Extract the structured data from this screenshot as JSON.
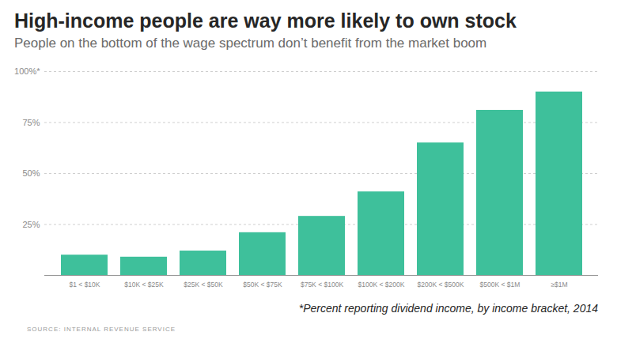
{
  "chart_data": {
    "type": "bar",
    "title": "High-income people are way more likely to own stock",
    "subtitle": "People on the bottom of the wage spectrum don’t benefit from the market boom",
    "note": "*Percent reporting dividend income, by income bracket, 2014",
    "source": "SOURCE: INTERNAL REVENUE SERVICE",
    "categories": [
      "$1 < $10K",
      "$10K < $25K",
      "$25K < $50K",
      "$50K < $75K",
      "$75K < $100K",
      "$100K < $200K",
      "$200K < $500K",
      "$500K < $1M",
      "≥$1M"
    ],
    "values": [
      10,
      9,
      12,
      21,
      29,
      41,
      65,
      81,
      90
    ],
    "color": "#3ec09b",
    "ylim": [
      0,
      100
    ],
    "yticks": [
      {
        "value": 25,
        "label": "25%"
      },
      {
        "value": 50,
        "label": "50%"
      },
      {
        "value": 75,
        "label": "75%"
      },
      {
        "value": 100,
        "label": "100%*"
      }
    ],
    "grid": true
  }
}
